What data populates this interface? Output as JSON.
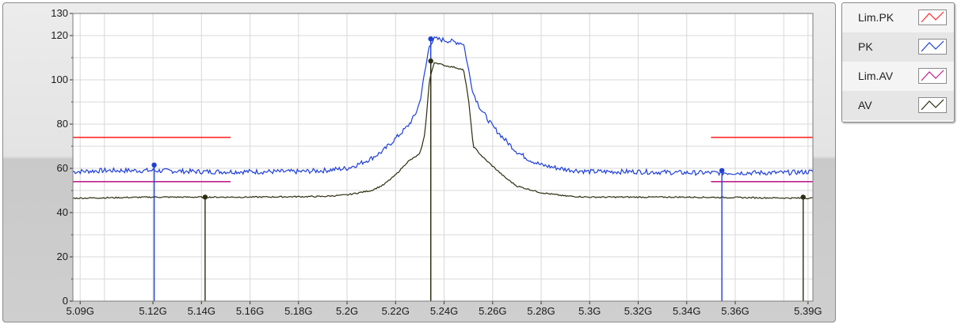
{
  "chart_data": {
    "type": "line",
    "xlim": [
      5.087,
      5.392
    ],
    "ylim": [
      0,
      130
    ],
    "y_ticks": [
      0,
      20,
      40,
      60,
      80,
      100,
      120,
      130
    ],
    "y_tick_labels": [
      "0",
      "20",
      "40",
      "60",
      "80",
      "100",
      "120",
      "130"
    ],
    "x_ticks": [
      5.09,
      5.12,
      5.14,
      5.16,
      5.18,
      5.2,
      5.22,
      5.24,
      5.26,
      5.28,
      5.3,
      5.32,
      5.34,
      5.36,
      5.39
    ],
    "x_tick_labels": [
      "5.09G",
      "5.12G",
      "5.14G",
      "5.16G",
      "5.18G",
      "5.2G",
      "5.22G",
      "5.24G",
      "5.26G",
      "5.28G",
      "5.3G",
      "5.32G",
      "5.34G",
      "5.36G",
      "5.39G"
    ],
    "x_grid": [
      5.09,
      5.1,
      5.12,
      5.14,
      5.16,
      5.18,
      5.2,
      5.22,
      5.24,
      5.26,
      5.28,
      5.3,
      5.32,
      5.34,
      5.36,
      5.38,
      5.39
    ],
    "grid": true,
    "legend_placement": "right",
    "series": [
      {
        "name": "Lim.PK",
        "color": "#ff2a2a",
        "segments": [
          [
            [
              5.087,
              74
            ],
            [
              5.152,
              74
            ]
          ],
          [
            [
              5.35,
              74
            ],
            [
              5.392,
              74
            ]
          ]
        ]
      },
      {
        "name": "PK",
        "color": "#1f3fd6",
        "points": [
          [
            5.087,
            58.5
          ],
          [
            5.1,
            59
          ],
          [
            5.12,
            59
          ],
          [
            5.14,
            58.5
          ],
          [
            5.16,
            58.5
          ],
          [
            5.18,
            58.5
          ],
          [
            5.19,
            59
          ],
          [
            5.2,
            60
          ],
          [
            5.205,
            62
          ],
          [
            5.21,
            64.5
          ],
          [
            5.215,
            68
          ],
          [
            5.22,
            73.5
          ],
          [
            5.225,
            79
          ],
          [
            5.228,
            84
          ],
          [
            5.23,
            90
          ],
          [
            5.232,
            103
          ],
          [
            5.234,
            116
          ],
          [
            5.236,
            118.5
          ],
          [
            5.24,
            118
          ],
          [
            5.245,
            117
          ],
          [
            5.248,
            116.5
          ],
          [
            5.25,
            105
          ],
          [
            5.252,
            94
          ],
          [
            5.255,
            87
          ],
          [
            5.26,
            79
          ],
          [
            5.265,
            73
          ],
          [
            5.27,
            67.5
          ],
          [
            5.275,
            64
          ],
          [
            5.28,
            61.5
          ],
          [
            5.29,
            59.5
          ],
          [
            5.3,
            58.5
          ],
          [
            5.32,
            58.5
          ],
          [
            5.34,
            58
          ],
          [
            5.36,
            58
          ],
          [
            5.38,
            58
          ],
          [
            5.392,
            58.5
          ]
        ]
      },
      {
        "name": "Lim.AV",
        "color": "#c0208c",
        "segments": [
          [
            [
              5.087,
              54
            ],
            [
              5.152,
              54
            ]
          ],
          [
            [
              5.35,
              54
            ],
            [
              5.392,
              54
            ]
          ]
        ]
      },
      {
        "name": "AV",
        "color": "#2d2d10",
        "points": [
          [
            5.087,
            46.5
          ],
          [
            5.12,
            47
          ],
          [
            5.16,
            47
          ],
          [
            5.19,
            47.3
          ],
          [
            5.2,
            48
          ],
          [
            5.21,
            50
          ],
          [
            5.215,
            52.5
          ],
          [
            5.22,
            57
          ],
          [
            5.225,
            63
          ],
          [
            5.23,
            66.5
          ],
          [
            5.232,
            75
          ],
          [
            5.234,
            100
          ],
          [
            5.236,
            108
          ],
          [
            5.24,
            106.5
          ],
          [
            5.245,
            105.5
          ],
          [
            5.248,
            104.5
          ],
          [
            5.25,
            92
          ],
          [
            5.252,
            70
          ],
          [
            5.256,
            65
          ],
          [
            5.26,
            61
          ],
          [
            5.265,
            56
          ],
          [
            5.27,
            52
          ],
          [
            5.28,
            49
          ],
          [
            5.29,
            47.5
          ],
          [
            5.3,
            47
          ],
          [
            5.34,
            47
          ],
          [
            5.392,
            46.5
          ]
        ]
      }
    ],
    "markers": [
      {
        "series": "PK",
        "x": 5.1205,
        "y": 61.5
      },
      {
        "series": "AV",
        "x": 5.1415,
        "y": 47
      },
      {
        "series": "PK",
        "x": 5.2345,
        "y": 118.5
      },
      {
        "series": "AV",
        "x": 5.2345,
        "y": 108.5
      },
      {
        "series": "PK",
        "x": 5.3545,
        "y": 59
      },
      {
        "series": "AV",
        "x": 5.388,
        "y": 47
      }
    ],
    "noise_amplitude": {
      "PK": 1.1,
      "AV": 0.3
    }
  },
  "legend": {
    "items": [
      {
        "label": "Lim.PK",
        "color": "#ff2a2a"
      },
      {
        "label": "PK",
        "color": "#1f3fd6"
      },
      {
        "label": "Lim.AV",
        "color": "#c0208c"
      },
      {
        "label": "AV",
        "color": "#2d2d10"
      }
    ]
  }
}
